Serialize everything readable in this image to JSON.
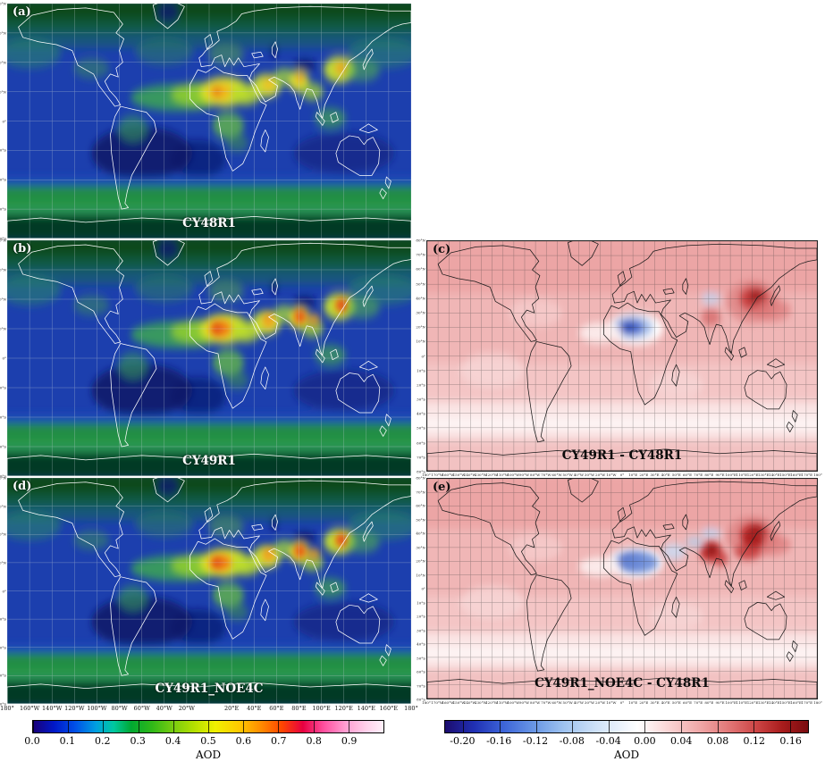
{
  "panels": {
    "a": {
      "letter": "(a)",
      "caption": "CY48R1"
    },
    "b": {
      "letter": "(b)",
      "caption": "CY49R1"
    },
    "c": {
      "letter": "(c)",
      "caption": "CY49R1 - CY48R1"
    },
    "d": {
      "letter": "(d)",
      "caption": "CY49R1_NOE4C"
    },
    "e": {
      "letter": "(e)",
      "caption": "CY49R1_NOE4C - CY48R1"
    }
  },
  "axes": {
    "lon_labels_20": [
      "180°",
      "160°W",
      "140°W",
      "120°W",
      "100°W",
      "80°W",
      "60°W",
      "40°W",
      "20°W",
      "",
      "20°E",
      "40°E",
      "60°E",
      "80°E",
      "100°E",
      "120°E",
      "140°E",
      "160°E",
      "180°"
    ],
    "lon_labels_10": [
      "180°",
      "170°W",
      "160°W",
      "150°W",
      "140°W",
      "130°W",
      "120°W",
      "110°W",
      "100°W",
      "90°W",
      "80°W",
      "70°W",
      "60°W",
      "50°W",
      "40°W",
      "30°W",
      "20°W",
      "10°W",
      "0°",
      "10°E",
      "20°E",
      "30°E",
      "40°E",
      "50°E",
      "60°E",
      "70°E",
      "80°E",
      "90°E",
      "100°E",
      "110°E",
      "120°E",
      "130°E",
      "140°E",
      "150°E",
      "160°E",
      "170°E",
      "180°"
    ],
    "lat_labels_20": [
      "80°N",
      "60°N",
      "40°N",
      "20°N",
      "0°",
      "20°S",
      "40°S",
      "60°S",
      "80°S"
    ],
    "lat_labels_10": [
      "80°N",
      "70°N",
      "60°N",
      "50°N",
      "40°N",
      "30°N",
      "20°N",
      "10°N",
      "0°",
      "10°S",
      "20°S",
      "30°S",
      "40°S",
      "50°S",
      "60°S",
      "70°S",
      "80°S"
    ]
  },
  "colorbars": {
    "aod": {
      "label": "AOD",
      "ticks": [
        "0.0",
        "0.1",
        "0.2",
        "0.3",
        "0.4",
        "0.5",
        "0.6",
        "0.7",
        "0.8",
        "0.9"
      ],
      "range": [
        0.0,
        1.0
      ],
      "gradient": [
        "#1a0078 0%",
        "#0018c8 6%",
        "#0050e8 12%",
        "#00a0e0 18%",
        "#00c8a0 23%",
        "#00a832 28%",
        "#30b818 34%",
        "#78cc10 40%",
        "#b4e000 46%",
        "#f0f000 52%",
        "#ffc800 59%",
        "#ff8c00 65%",
        "#ff4600 71%",
        "#e60040 77%",
        "#ff50a0 83%",
        "#ff9cd0 89%",
        "#ffd0ea 95%",
        "#fff0fa 100%"
      ]
    },
    "diff": {
      "label": "AOD",
      "ticks": [
        "-0.20",
        "-0.16",
        "-0.12",
        "-0.08",
        "-0.04",
        "0.00",
        "0.04",
        "0.08",
        "0.12",
        "0.16"
      ],
      "range": [
        -0.22,
        0.18
      ],
      "gradient": [
        "#1c0c6e 0%",
        "#2030b4 8%",
        "#3c64d8 16%",
        "#6c9ae6 25%",
        "#a0c4f0 33%",
        "#d0e2f8 42%",
        "#ffffff 53%",
        "#fad2d2 62%",
        "#f0a8a8 70%",
        "#e27878 78%",
        "#cc4444 86%",
        "#a81c1c 93%",
        "#7a0c10 100%"
      ]
    }
  }
}
